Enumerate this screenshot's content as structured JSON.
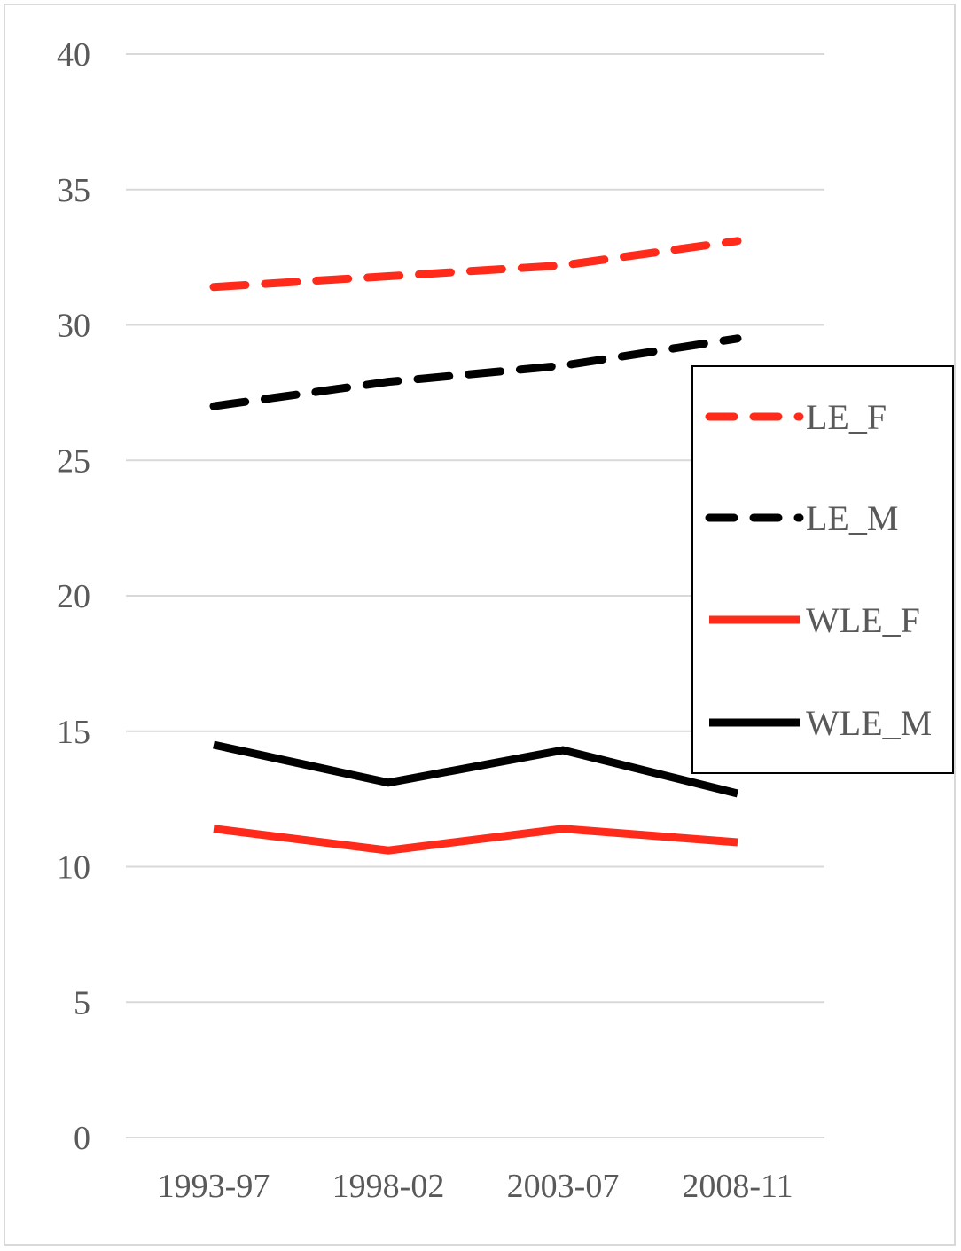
{
  "chart_data": {
    "type": "line",
    "categories": [
      "1993-97",
      "1998-02",
      "2003-07",
      "2008-11"
    ],
    "ylim": [
      0,
      40
    ],
    "yticks": [
      0,
      5,
      10,
      15,
      20,
      25,
      30,
      35,
      40
    ],
    "grid": true,
    "legend_position": "right",
    "series": [
      {
        "name": "LE_F",
        "values": [
          31.4,
          31.8,
          32.2,
          33.1
        ],
        "color": "#ff2a1a",
        "dashed": true
      },
      {
        "name": "LE_M",
        "values": [
          27.0,
          27.9,
          28.5,
          29.5
        ],
        "color": "#000000",
        "dashed": true
      },
      {
        "name": "WLE_F",
        "values": [
          11.4,
          10.6,
          11.4,
          10.9
        ],
        "color": "#ff2a1a",
        "dashed": false
      },
      {
        "name": "WLE_M",
        "values": [
          14.5,
          13.1,
          14.3,
          12.7
        ],
        "color": "#000000",
        "dashed": false
      }
    ]
  }
}
